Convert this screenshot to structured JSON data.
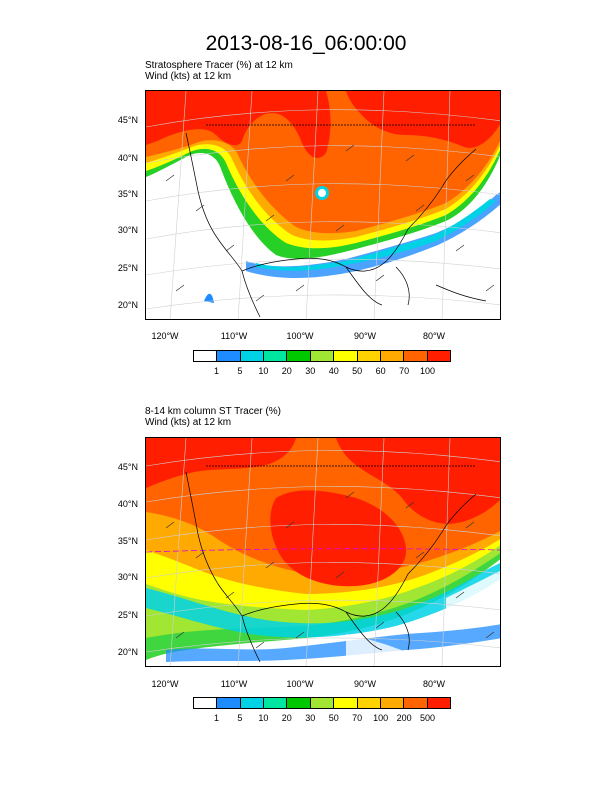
{
  "title": "2013-08-16_06:00:00",
  "panels": [
    {
      "id": "top",
      "field_label": "Stratosphere Tracer   (%)     at   12 km",
      "wind_label": "Wind   (kts)     at   12 km",
      "lat_labels": [
        "45°N",
        "40°N",
        "35°N",
        "30°N",
        "25°N",
        "20°N"
      ],
      "lon_labels": [
        "120°W",
        "110°W",
        "100°W",
        "90°W",
        "80°W"
      ],
      "colorbar_labels": [
        "1",
        "5",
        "10",
        "20",
        "30",
        "40",
        "50",
        "60",
        "70",
        "100"
      ],
      "colorbar_colors": [
        "#ffffff",
        "#1e8cff",
        "#00d2e6",
        "#00e6a0",
        "#00c800",
        "#a0e632",
        "#ffff00",
        "#ffd200",
        "#ffaa00",
        "#ff6400",
        "#ff1e00"
      ]
    },
    {
      "id": "bottom",
      "field_label": "8-14 km column ST Tracer   (%)",
      "wind_label": "Wind   (kts)     at   12 km",
      "lat_labels": [
        "45°N",
        "40°N",
        "35°N",
        "30°N",
        "25°N",
        "20°N"
      ],
      "lon_labels": [
        "120°W",
        "110°W",
        "100°W",
        "90°W",
        "80°W"
      ],
      "colorbar_labels": [
        "1",
        "5",
        "10",
        "20",
        "30",
        "50",
        "70",
        "100",
        "200",
        "500"
      ],
      "colorbar_colors": [
        "#ffffff",
        "#1e8cff",
        "#00d2e6",
        "#00e6a0",
        "#00c800",
        "#a0e632",
        "#ffff00",
        "#ffd200",
        "#ffaa00",
        "#ff6400",
        "#ff1e00"
      ]
    }
  ]
}
